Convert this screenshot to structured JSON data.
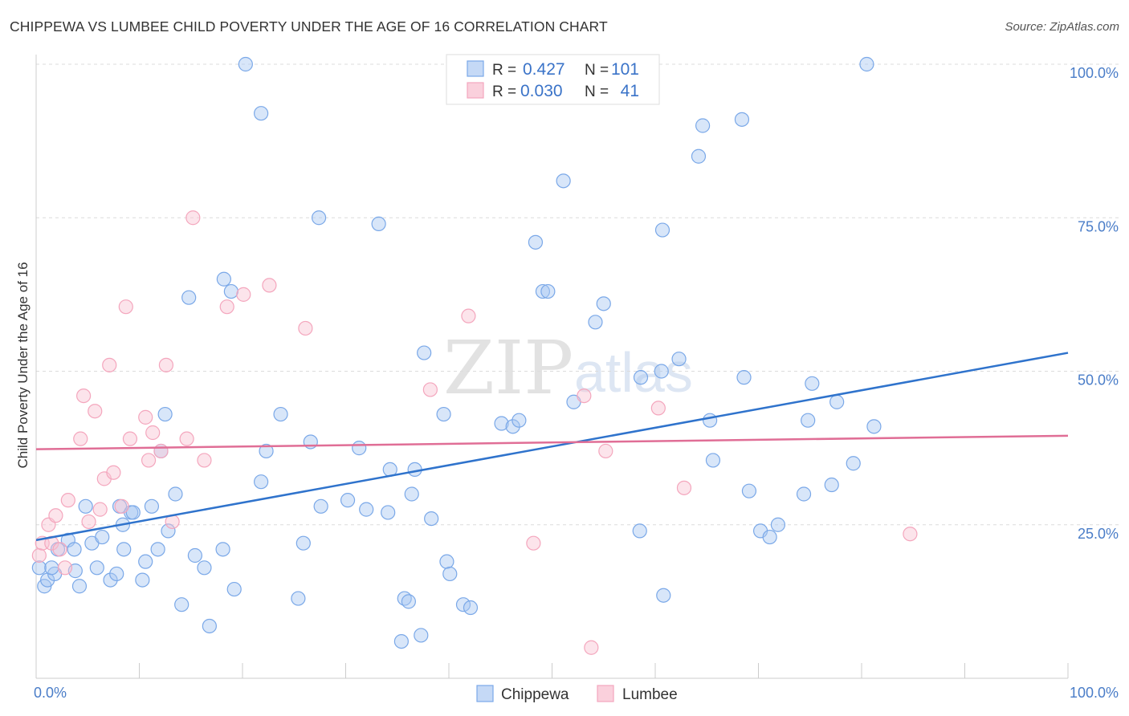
{
  "header": {
    "title": "CHIPPEWA VS LUMBEE CHILD POVERTY UNDER THE AGE OF 16 CORRELATION CHART",
    "source": "Source: ZipAtlas.com"
  },
  "watermark": {
    "zip": "ZIP",
    "atlas": "atlas"
  },
  "stats": {
    "label_r": "R =",
    "label_n": "N =",
    "rows": [
      {
        "r": "0.427",
        "n": "101"
      },
      {
        "r": "0.030",
        "n": "41"
      }
    ]
  },
  "chart_data": {
    "type": "scatter",
    "title": "CHIPPEWA VS LUMBEE CHILD POVERTY UNDER THE AGE OF 16 CORRELATION CHART",
    "xlabel": "",
    "ylabel": "Child Poverty Under the Age of 16",
    "xlim": [
      0,
      100
    ],
    "ylim": [
      0,
      100
    ],
    "x_tick_labels": [
      "0.0%",
      "100.0%"
    ],
    "y_ticks": [
      25,
      50,
      75,
      100
    ],
    "y_tick_labels": [
      "25.0%",
      "50.0%",
      "75.0%",
      "100.0%"
    ],
    "grid": "horizontal dashed",
    "legend_position": "bottom-center",
    "colors": {
      "chippewa": "#7aa8e8",
      "lumbee": "#f4a6bd",
      "chippewa_line": "#2f73cc",
      "lumbee_line": "#e06e96"
    },
    "series": [
      {
        "name": "Chippewa",
        "r": 0.427,
        "n": 101,
        "trend": [
          [
            0,
            22.5
          ],
          [
            100,
            53
          ]
        ],
        "points": [
          [
            0.3,
            18
          ],
          [
            0.8,
            15
          ],
          [
            1.1,
            16
          ],
          [
            1.8,
            17
          ],
          [
            1.5,
            18
          ],
          [
            2.1,
            21
          ],
          [
            3.1,
            22.5
          ],
          [
            3.7,
            21
          ],
          [
            4.2,
            15
          ],
          [
            3.8,
            17.5
          ],
          [
            4.8,
            28
          ],
          [
            5.4,
            22
          ],
          [
            5.9,
            18
          ],
          [
            6.4,
            23
          ],
          [
            7.2,
            16
          ],
          [
            7.8,
            17
          ],
          [
            8.1,
            28
          ],
          [
            8.4,
            25
          ],
          [
            8.5,
            21
          ],
          [
            9.2,
            27
          ],
          [
            9.4,
            27
          ],
          [
            10.3,
            16
          ],
          [
            10.6,
            19
          ],
          [
            11.2,
            28
          ],
          [
            11.8,
            21
          ],
          [
            12.1,
            37
          ],
          [
            12.5,
            43
          ],
          [
            12.8,
            24
          ],
          [
            13.5,
            30
          ],
          [
            14.1,
            12
          ],
          [
            14.8,
            62
          ],
          [
            15.4,
            20
          ],
          [
            16.3,
            18
          ],
          [
            16.8,
            8.5
          ],
          [
            18.1,
            21
          ],
          [
            18.2,
            65
          ],
          [
            18.9,
            63
          ],
          [
            19.2,
            14.5
          ],
          [
            20.3,
            100
          ],
          [
            21.8,
            92
          ],
          [
            21.8,
            32
          ],
          [
            22.3,
            37
          ],
          [
            23.7,
            43
          ],
          [
            25.4,
            13
          ],
          [
            25.9,
            22
          ],
          [
            26.6,
            38.5
          ],
          [
            27.6,
            28
          ],
          [
            27.4,
            75
          ],
          [
            30.2,
            29
          ],
          [
            31.3,
            37.5
          ],
          [
            32.0,
            27.5
          ],
          [
            33.2,
            74
          ],
          [
            34.1,
            27
          ],
          [
            34.3,
            34
          ],
          [
            35.4,
            6
          ],
          [
            35.7,
            13
          ],
          [
            36.1,
            12.5
          ],
          [
            36.4,
            30
          ],
          [
            36.7,
            34
          ],
          [
            37.3,
            7
          ],
          [
            37.6,
            53
          ],
          [
            38.3,
            26
          ],
          [
            39.5,
            43
          ],
          [
            39.8,
            19
          ],
          [
            40.1,
            17
          ],
          [
            41.4,
            12
          ],
          [
            42.1,
            11.5
          ],
          [
            45.1,
            41.5
          ],
          [
            46.2,
            41
          ],
          [
            46.8,
            42
          ],
          [
            48.4,
            71
          ],
          [
            49.1,
            63
          ],
          [
            49.6,
            63
          ],
          [
            51.1,
            81
          ],
          [
            52.1,
            45
          ],
          [
            54.2,
            58
          ],
          [
            55.0,
            61
          ],
          [
            58.5,
            24
          ],
          [
            58.6,
            49
          ],
          [
            60.6,
            50
          ],
          [
            60.7,
            73
          ],
          [
            60.8,
            13.5
          ],
          [
            62.3,
            52
          ],
          [
            64.2,
            85
          ],
          [
            64.6,
            90
          ],
          [
            65.3,
            42
          ],
          [
            65.6,
            35.5
          ],
          [
            68.4,
            91
          ],
          [
            68.6,
            49
          ],
          [
            69.1,
            30.5
          ],
          [
            70.2,
            24
          ],
          [
            71.1,
            23
          ],
          [
            71.9,
            25
          ],
          [
            74.4,
            30
          ],
          [
            74.8,
            42
          ],
          [
            75.2,
            48
          ],
          [
            77.1,
            31.5
          ],
          [
            77.6,
            45
          ],
          [
            79.2,
            35
          ],
          [
            80.5,
            100
          ],
          [
            81.2,
            41
          ]
        ]
      },
      {
        "name": "Lumbee",
        "r": 0.03,
        "n": 41,
        "trend": [
          [
            0,
            37.3
          ],
          [
            100,
            39.5
          ]
        ],
        "points": [
          [
            0.3,
            20
          ],
          [
            0.6,
            22
          ],
          [
            1.2,
            25
          ],
          [
            1.5,
            22
          ],
          [
            1.9,
            26.5
          ],
          [
            2.3,
            21
          ],
          [
            2.8,
            18
          ],
          [
            3.1,
            29
          ],
          [
            4.3,
            39
          ],
          [
            4.6,
            46
          ],
          [
            5.1,
            25.5
          ],
          [
            5.7,
            43.5
          ],
          [
            6.2,
            27.5
          ],
          [
            6.6,
            32.5
          ],
          [
            7.1,
            51
          ],
          [
            7.5,
            33.5
          ],
          [
            8.3,
            28
          ],
          [
            8.7,
            60.5
          ],
          [
            9.1,
            39
          ],
          [
            10.6,
            42.5
          ],
          [
            10.9,
            35.5
          ],
          [
            11.3,
            40
          ],
          [
            12.1,
            37
          ],
          [
            12.6,
            51
          ],
          [
            13.2,
            25.5
          ],
          [
            14.6,
            39
          ],
          [
            15.2,
            75
          ],
          [
            16.3,
            35.5
          ],
          [
            18.5,
            60.5
          ],
          [
            20.1,
            62.5
          ],
          [
            22.6,
            64
          ],
          [
            26.1,
            57
          ],
          [
            38.2,
            47
          ],
          [
            41.9,
            59
          ],
          [
            48.2,
            22
          ],
          [
            53.1,
            46
          ],
          [
            53.8,
            5
          ],
          [
            55.2,
            37
          ],
          [
            60.3,
            44
          ],
          [
            62.8,
            31
          ],
          [
            84.7,
            23.5
          ]
        ]
      }
    ]
  },
  "legend": {
    "items": [
      "Chippewa",
      "Lumbee"
    ]
  }
}
